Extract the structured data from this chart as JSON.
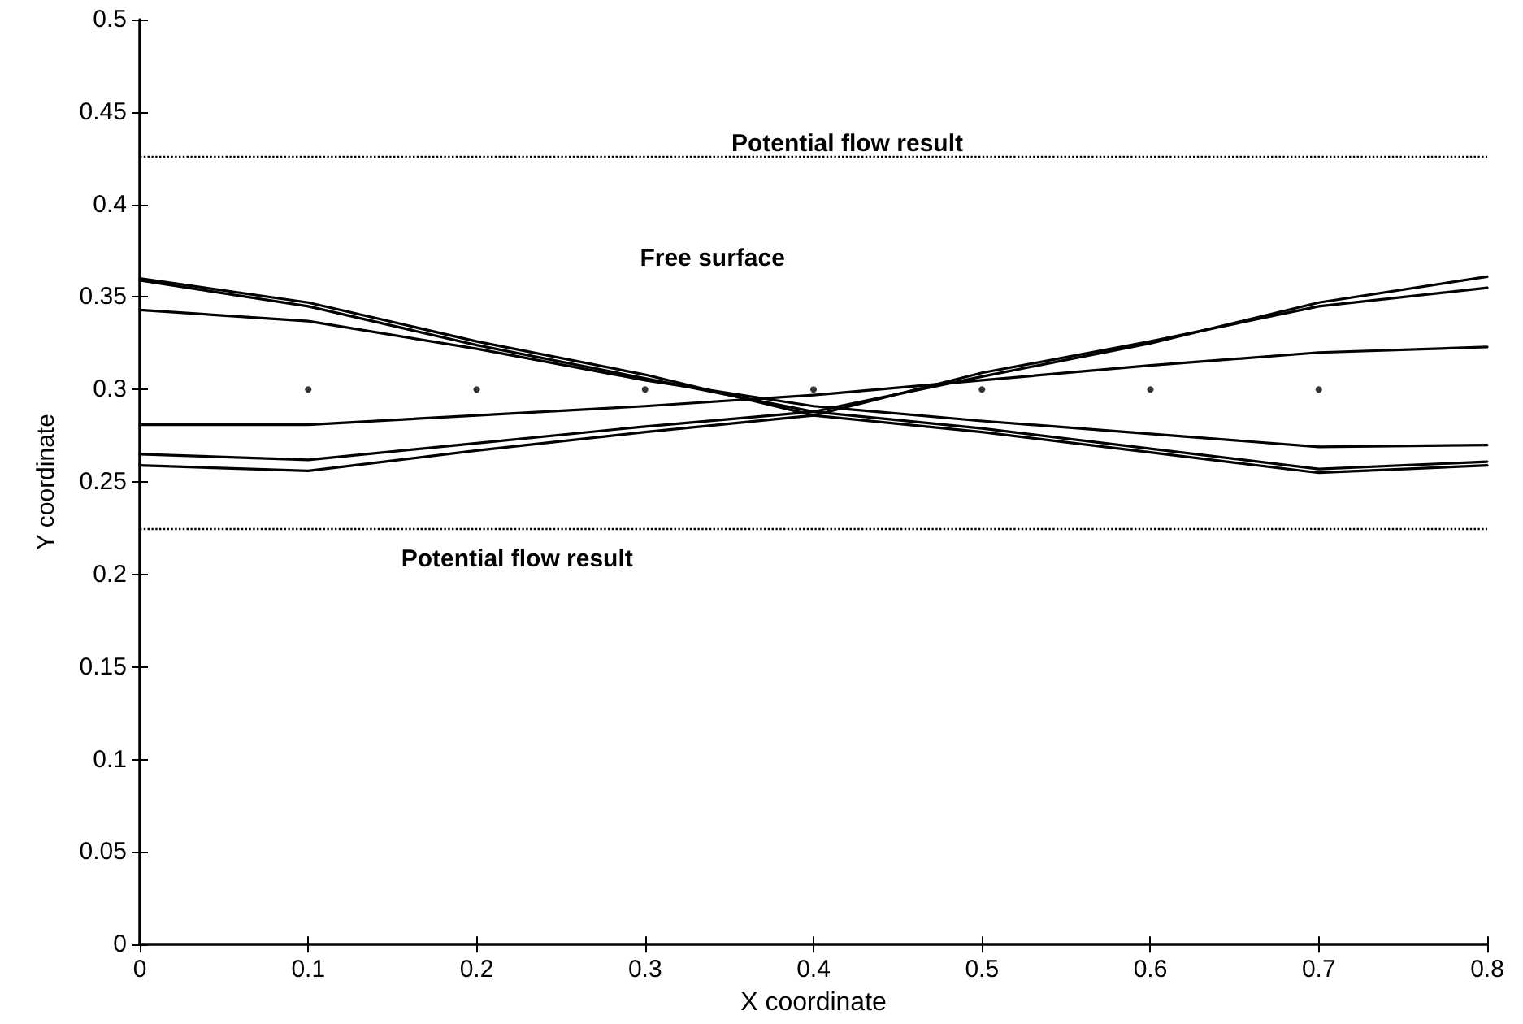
{
  "chart_data": {
    "type": "line",
    "xlabel": "X coordinate",
    "ylabel": "Y coordinate",
    "x": [
      0,
      0.1,
      0.2,
      0.3,
      0.4,
      0.5,
      0.6,
      0.7,
      0.8
    ],
    "xlim": [
      0,
      0.8
    ],
    "xticks": [
      0,
      0.1,
      0.2,
      0.3,
      0.4,
      0.5,
      0.6,
      0.7,
      0.8
    ],
    "ylim": [
      0,
      0.5
    ],
    "yticks": [
      0,
      0.05,
      0.1,
      0.15,
      0.2,
      0.25,
      0.3,
      0.35,
      0.4,
      0.45,
      0.5
    ],
    "grid": false,
    "marker": "none",
    "line_style": "solid",
    "series": [
      {
        "color": "#000000",
        "values": [
          0.36,
          0.347,
          0.326,
          0.308,
          0.286,
          0.277,
          0.266,
          0.255,
          0.259
        ]
      },
      {
        "color": "#000000",
        "values": [
          0.359,
          0.345,
          0.324,
          0.306,
          0.288,
          0.279,
          0.268,
          0.257,
          0.261
        ]
      },
      {
        "color": "#000000",
        "values": [
          0.343,
          0.337,
          0.322,
          0.305,
          0.291,
          0.283,
          0.276,
          0.269,
          0.27
        ]
      },
      {
        "color": "#000000",
        "values": [
          0.265,
          0.262,
          0.271,
          0.28,
          0.288,
          0.307,
          0.325,
          0.347,
          0.361
        ]
      },
      {
        "color": "#000000",
        "values": [
          0.259,
          0.256,
          0.267,
          0.277,
          0.286,
          0.309,
          0.326,
          0.345,
          0.355
        ]
      },
      {
        "color": "#000000",
        "values": [
          0.281,
          0.281,
          0.286,
          0.291,
          0.297,
          0.305,
          0.313,
          0.32,
          0.323
        ]
      },
      {
        "type": "scatter",
        "marker": "circle",
        "color": "#000000",
        "x": [
          0.1,
          0.2,
          0.3,
          0.4,
          0.5,
          0.6,
          0.7
        ],
        "values": [
          0.3,
          0.3,
          0.3,
          0.3,
          0.3,
          0.3,
          0.3
        ]
      }
    ],
    "ref_lines": [
      {
        "axis": "y",
        "value": 0.426,
        "color": "#000000",
        "line_style": "dotted"
      },
      {
        "axis": "y",
        "value": 0.225,
        "color": "#000000",
        "line_style": "dotted"
      }
    ],
    "annotations": [
      "Potential flow result",
      "Free surface",
      "Potential flow result"
    ]
  }
}
